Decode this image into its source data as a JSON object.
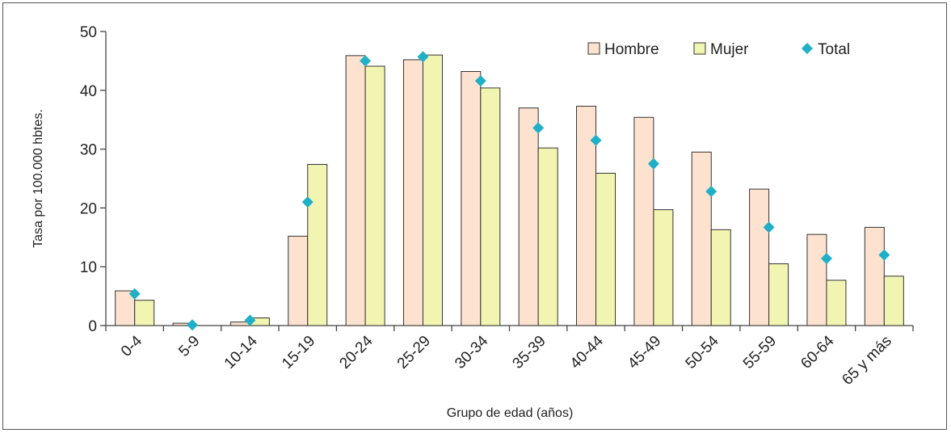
{
  "chart_data": {
    "type": "bar",
    "categories": [
      "0-4",
      "5-9",
      "10-14",
      "15-19",
      "20-24",
      "25-29",
      "30-34",
      "35-39",
      "40-44",
      "45-49",
      "50-54",
      "55-59",
      "60-64",
      "65 y más"
    ],
    "series": [
      {
        "name": "Hombre",
        "kind": "bar",
        "color": "#fde2cf",
        "values": [
          5.9,
          0.4,
          0.6,
          15.2,
          45.9,
          45.2,
          43.2,
          37.0,
          37.3,
          35.4,
          29.5,
          23.2,
          15.5,
          16.7
        ]
      },
      {
        "name": "Mujer",
        "kind": "bar",
        "color": "#f2f5b1",
        "values": [
          4.3,
          0.0,
          1.3,
          27.4,
          44.1,
          46.0,
          40.4,
          30.2,
          25.9,
          19.7,
          16.3,
          10.5,
          7.7,
          8.4
        ]
      },
      {
        "name": "Total",
        "kind": "marker",
        "color": "#1fb0c8",
        "values": [
          5.4,
          0.1,
          0.9,
          21.0,
          45.0,
          45.7,
          41.6,
          33.6,
          31.5,
          27.5,
          22.8,
          16.7,
          11.4,
          12.0
        ]
      }
    ],
    "xlabel": "Grupo de edad (años)",
    "ylabel": "Tasa por 100.000 hbtes.",
    "ylim": [
      0,
      50
    ],
    "yticks": [
      0,
      10,
      20,
      30,
      40,
      50
    ],
    "grid": false,
    "legend": "top-right"
  }
}
